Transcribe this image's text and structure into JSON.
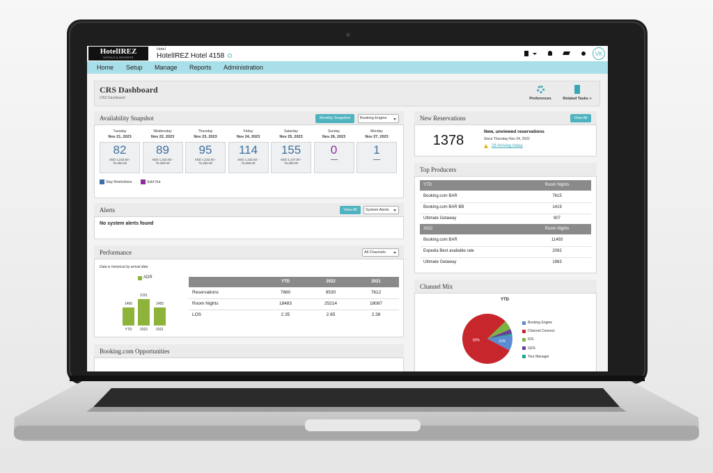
{
  "header": {
    "logo": "HotelIREZ",
    "logo_tagline": "HOTELS & RESORTS",
    "hotel_label": "Hotel",
    "hotel_name": "HotelIREZ Hotel",
    "hotel_code": "4158",
    "user_initials": "VK"
  },
  "nav": [
    "Home",
    "Setup",
    "Manage",
    "Reports",
    "Administration"
  ],
  "page": {
    "title": "CRS Dashboard",
    "breadcrumb": "CRS Dashboard",
    "actions": [
      "Preferences",
      "Related Tasks »"
    ]
  },
  "availability": {
    "title": "Availability Snapshot",
    "button": "Monthly Snapshot",
    "select": "Booking Engine",
    "days": [
      {
        "weekday": "Tuesday",
        "date": "Nov 21, 2023",
        "count": 82,
        "rate": [
          "AED 1,232.50 -",
          "75,450.00"
        ]
      },
      {
        "weekday": "Wednesday",
        "date": "Nov 22, 2023",
        "count": 89,
        "rate": [
          "AED 1,232.50 -",
          "75,450.00"
        ]
      },
      {
        "weekday": "Thursday",
        "date": "Nov 23, 2023",
        "count": 95,
        "rate": [
          "AED 1,232.50 -",
          "75,450.00"
        ]
      },
      {
        "weekday": "Friday",
        "date": "Nov 24, 2023",
        "count": 114,
        "rate": [
          "AED 1,232.50 -",
          "75,450.00"
        ]
      },
      {
        "weekday": "Saturday",
        "date": "Nov 25, 2023",
        "count": 155,
        "rate": [
          "AED 1,147.50 -",
          "75,350.00"
        ]
      },
      {
        "weekday": "Sunday",
        "date": "Nov 26, 2023",
        "count": 0
      },
      {
        "weekday": "Monday",
        "date": "Nov 27, 2023",
        "count": 1
      }
    ],
    "legend": [
      {
        "label": "Stay Restrictions",
        "color": "#3d6fa8"
      },
      {
        "label": "Sold Out",
        "color": "#8e2ba0"
      }
    ]
  },
  "alerts": {
    "title": "Alerts",
    "button": "View All",
    "select": "System Alerts",
    "message": "No system alerts found"
  },
  "performance": {
    "title": "Performance",
    "select": "All Channels",
    "note": "Data is historical by arrival date",
    "chart": {
      "type": "bar",
      "categories": [
        "YTD",
        "2022",
        "2021"
      ],
      "series": [
        {
          "name": "ADR",
          "color": "#8db33a",
          "values": [
            1460,
            2151,
            1455
          ]
        }
      ]
    },
    "table": {
      "columns": [
        "YTD",
        "2022",
        "2021"
      ],
      "rows": [
        {
          "label": "Reservations",
          "values": [
            7880,
            9530,
            7612
          ]
        },
        {
          "label": "Room Nights",
          "values": [
            18483,
            25214,
            18087
          ]
        },
        {
          "label": "LOS",
          "values": [
            2.35,
            2.65,
            2.38
          ]
        }
      ]
    }
  },
  "booking_opportunities": {
    "title": "Booking.com Opportunities"
  },
  "new_reservations": {
    "title": "New Reservations",
    "button": "View All",
    "count": 1378,
    "heading": "New, unviewed reservations",
    "since": "Since Thursday Nov 24, 2022",
    "link": "28 Arriving today"
  },
  "top_producers": {
    "title": "Top Producers",
    "groups": [
      {
        "period": "YTD",
        "column": "Room Nights",
        "rows": [
          {
            "name": "Booking.com BAR",
            "nights": 7615
          },
          {
            "name": "Booking.com BAR BB",
            "nights": 1419
          },
          {
            "name": "Ultimate Getaway",
            "nights": 907
          }
        ]
      },
      {
        "period": "2022",
        "column": "Room Nights",
        "rows": [
          {
            "name": "Booking.com BAR",
            "nights": 11493
          },
          {
            "name": "Expedia Best available rate",
            "nights": 2092
          },
          {
            "name": "Ultimate Getaway",
            "nights": 1963
          }
        ]
      }
    ]
  },
  "channel_mix": {
    "title": "Channel Mix",
    "chart": {
      "type": "pie",
      "title": "YTD",
      "categories": [
        "Booking Engine",
        "Channel Connect",
        "IDS",
        "GDS",
        "Tour Manager"
      ],
      "values": [
        10,
        80,
        6,
        3,
        1
      ],
      "value_labels": [
        "10%",
        "80%",
        null,
        null,
        null
      ],
      "colors": [
        "#5b8bd0",
        "#c8262d",
        "#7cb342",
        "#6a3d9a",
        "#1aa98f"
      ]
    }
  }
}
